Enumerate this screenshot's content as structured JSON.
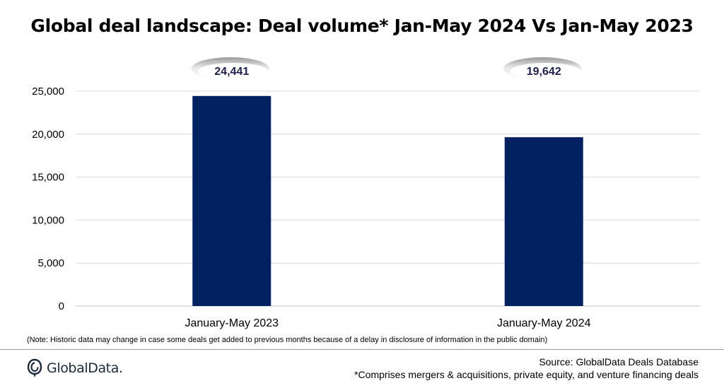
{
  "brand": {
    "name": "GlobalData.",
    "logo_icon": "globaldata-logo-icon"
  },
  "footer": {
    "note": "(Note: Historic data may change in case some deals get added to previous months because of a delay in disclosure of information in the public domain)",
    "source": "Source: GlobalData Deals Database",
    "footnote": "*Comprises mergers & acquisitions, private equity, and venture financing deals"
  },
  "colors": {
    "bar": "#002060",
    "gridline": "#d9d9d9",
    "callout_text": "#1f1f4d"
  },
  "chart_data": {
    "type": "bar",
    "title": "Global deal landscape: Deal volume* Jan-May 2024 Vs Jan-May 2023",
    "xlabel": "",
    "ylabel": "",
    "categories": [
      "January-May 2023",
      "January-May 2024"
    ],
    "values": [
      24441,
      19642
    ],
    "data_labels": [
      "24,441",
      "19,642"
    ],
    "ylim": [
      0,
      25000
    ],
    "yticks": [
      0,
      5000,
      10000,
      15000,
      20000,
      25000
    ],
    "ytick_labels": [
      "0",
      "5,000",
      "10,000",
      "15,000",
      "20,000",
      "25,000"
    ],
    "grid": true,
    "legend": "none"
  }
}
